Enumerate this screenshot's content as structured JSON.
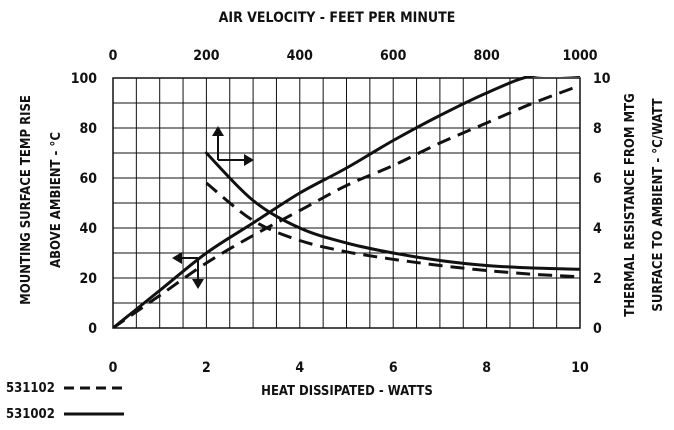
{
  "chart_data": {
    "type": "line",
    "title": "AIR VELOCITY - FEET PER MINUTE",
    "xlabel": "HEAT DISSIPATED - WATTS",
    "ylabel_left": [
      "MOUNTING SURFACE TEMP RISE",
      "ABOVE AMBIENT - °C"
    ],
    "ylabel_right": [
      "THERMAL RESISTANCE FROM MTG",
      "SURFACE TO AMBIENT - °C/WATT"
    ],
    "x_bottom": {
      "min": 0,
      "max": 10,
      "ticks": [
        "0",
        "2",
        "4",
        "6",
        "8",
        "10"
      ]
    },
    "x_top": {
      "min": 0,
      "max": 1000,
      "ticks": [
        "0",
        "200",
        "400",
        "600",
        "800",
        "1000"
      ]
    },
    "y_left": {
      "min": 0,
      "max": 100,
      "ticks": [
        "0",
        "20",
        "40",
        "60",
        "80",
        "100"
      ]
    },
    "y_right": {
      "min": 0,
      "max": 10,
      "ticks": [
        "0",
        "2",
        "4",
        "6",
        "8",
        "10"
      ]
    },
    "grid": true,
    "legend": [
      {
        "label": "531102",
        "style": "dashed"
      },
      {
        "label": "531002",
        "style": "solid"
      }
    ],
    "series": [
      {
        "name": "531002",
        "curve": "temperature rise vs heat dissipated",
        "axes": "x_bottom/y_left",
        "style": "solid",
        "x": [
          0,
          1,
          2,
          3,
          4,
          5,
          6,
          7,
          8,
          9,
          10
        ],
        "y": [
          0,
          15,
          30,
          42,
          54,
          64,
          75,
          85,
          94,
          101,
          101
        ]
      },
      {
        "name": "531102",
        "curve": "temperature rise vs heat dissipated",
        "axes": "x_bottom/y_left",
        "style": "dashed",
        "x": [
          0,
          1,
          2,
          3,
          4,
          5,
          6,
          7,
          8,
          9,
          10
        ],
        "y": [
          0,
          13,
          26,
          37,
          47,
          57,
          65,
          74,
          82,
          90,
          97
        ]
      },
      {
        "name": "531002",
        "curve": "thermal resistance vs air velocity",
        "axes": "x_top/y_right",
        "style": "solid",
        "x": [
          200,
          300,
          400,
          500,
          600,
          700,
          800,
          900,
          1000
        ],
        "y": [
          7.0,
          5.1,
          4.0,
          3.4,
          3.0,
          2.7,
          2.5,
          2.4,
          2.35
        ]
      },
      {
        "name": "531102",
        "curve": "thermal resistance vs air velocity",
        "axes": "x_top/y_right",
        "style": "dashed",
        "x": [
          200,
          300,
          400,
          500,
          600,
          700,
          800,
          900,
          1000
        ],
        "y": [
          5.8,
          4.3,
          3.5,
          3.05,
          2.75,
          2.5,
          2.3,
          2.15,
          2.05
        ]
      }
    ]
  }
}
